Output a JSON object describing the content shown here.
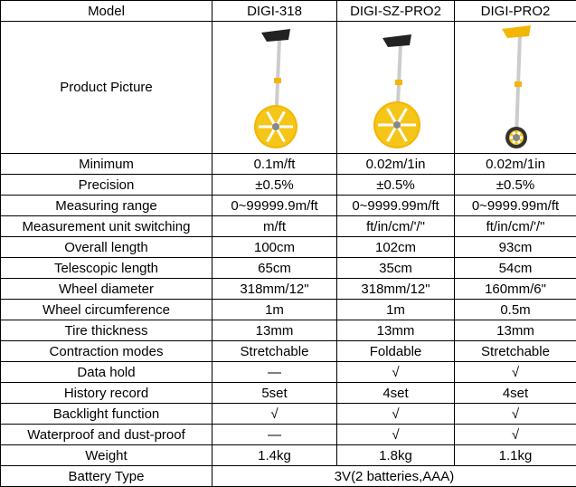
{
  "header": [
    "Model",
    "DIGI-318",
    "DIGI-SZ-PRO2",
    "DIGI-PRO2"
  ],
  "picture_label": "Product Picture",
  "rows": [
    [
      "Minimum",
      "0.1m/ft",
      "0.02m/1in",
      "0.02m/1in"
    ],
    [
      "Precision",
      "±0.5%",
      "±0.5%",
      "±0.5%"
    ],
    [
      "Measuring range",
      "0~99999.9m/ft",
      "0~9999.99m/ft",
      "0~9999.99m/ft"
    ],
    [
      "Measurement unit switching",
      "m/ft",
      "ft/in/cm/'/\"",
      "ft/in/cm/'/\""
    ],
    [
      "Overall length",
      "100cm",
      "102cm",
      "93cm"
    ],
    [
      "Telescopic length",
      "65cm",
      "35cm",
      "54cm"
    ],
    [
      "Wheel diameter",
      "318mm/12\"",
      "318mm/12\"",
      "160mm/6\""
    ],
    [
      "Wheel circumference",
      "1m",
      "1m",
      "0.5m"
    ],
    [
      "Tire thickness",
      "13mm",
      "13mm",
      "13mm"
    ],
    [
      "Contraction modes",
      "Stretchable",
      "Foldable",
      "Stretchable"
    ],
    [
      "Data hold",
      "—",
      "√",
      "√"
    ],
    [
      "History record",
      "5set",
      "4set",
      "4set"
    ],
    [
      "Backlight function",
      "√",
      "√",
      "√"
    ],
    [
      "Waterproof and dust-proof",
      "—",
      "√",
      "√"
    ],
    [
      "Weight",
      "1.4kg",
      "1.8kg",
      "1.1kg"
    ]
  ],
  "battery": [
    "Battery Type",
    "3V(2 batteries,AAA)"
  ]
}
